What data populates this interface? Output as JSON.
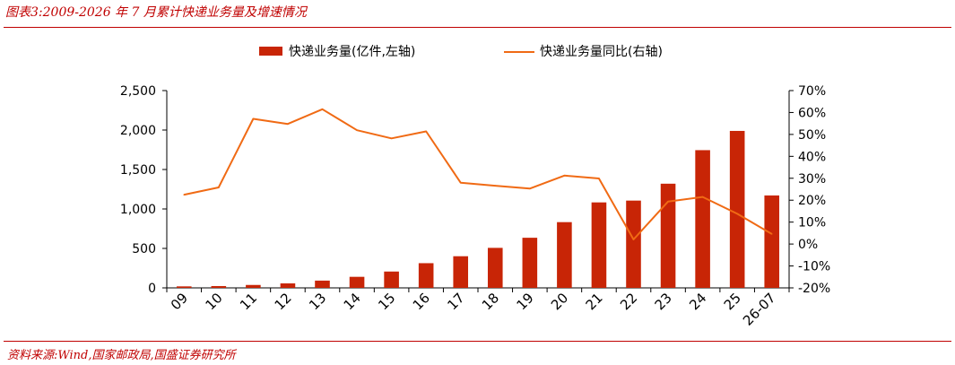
{
  "figure_title": "图表3:2009-2026 年 7 月累计快递业务量及增速情况",
  "source": "资料来源:Wind,国家邮政局,国盛证券研究所",
  "colors": {
    "bar": "#C82506",
    "line": "#F06A14",
    "accent": "#C00000"
  },
  "chart_data": {
    "type": "bar",
    "title": "",
    "xlabel": "",
    "ylabel": "",
    "categories": [
      "09",
      "10",
      "11",
      "12",
      "13",
      "14",
      "15",
      "16",
      "17",
      "18",
      "19",
      "20",
      "21",
      "22",
      "23",
      "24",
      "25",
      "26-07"
    ],
    "series": [
      {
        "name": "快递业务量(亿件,左轴)",
        "kind": "bar",
        "axis": "left",
        "values": [
          19,
          23,
          37,
          57,
          92,
          140,
          207,
          313,
          401,
          507,
          635,
          833,
          1083,
          1106,
          1320,
          1745,
          1989,
          1171
        ]
      },
      {
        "name": "快递业务量同比(右轴)",
        "kind": "line",
        "axis": "right",
        "values": [
          22.5,
          25.8,
          57.1,
          54.8,
          61.5,
          51.9,
          48.2,
          51.4,
          28.0,
          26.6,
          25.3,
          31.2,
          29.9,
          2.1,
          19.4,
          21.5,
          13.8,
          4.6
        ]
      }
    ],
    "ylim_left": [
      0,
      2500
    ],
    "yticks_left": [
      "0",
      "500",
      "1,000",
      "1,500",
      "2,000",
      "2,500"
    ],
    "ylim_right": [
      -20,
      70
    ],
    "yticks_right": [
      "-20%",
      "-10%",
      "0%",
      "10%",
      "20%",
      "30%",
      "40%",
      "50%",
      "60%",
      "70%"
    ],
    "legend_position": "top-center",
    "grid": false
  }
}
